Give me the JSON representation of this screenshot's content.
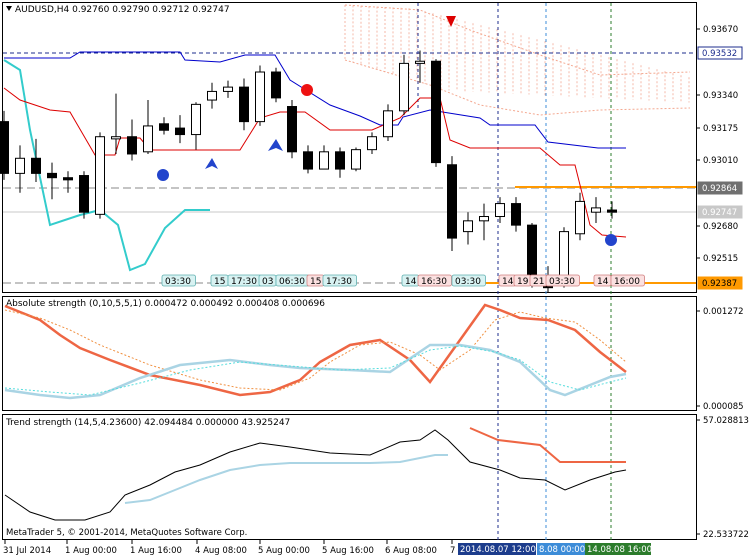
{
  "main_header": "AUDUSD,H4  0.92760 0.92790 0.92712 0.92747",
  "abs_header": "Absolute strength (0,10,5,5,1) 0.000472 0.000492 0.000408 0.000696",
  "trend_header": "Trend strength (14,5,4.23600) 42.094484 0.000000 43.925247",
  "copyright": "MetaTrader 5, © 2001-2014, MetaQuotes Software Corp.",
  "colors": {
    "bull_candle": "#ffffff",
    "bear_candle": "#000000",
    "kijun": "#0000cc",
    "tenkan": "#dd0000",
    "chikou": "#33cccc",
    "abs_red": "#ee6644",
    "abs_blue": "#aad4e4",
    "orange_level": "#ff9900"
  },
  "price_axis": {
    "ticks": [
      "0.93670",
      "0.93340",
      "0.93175",
      "0.93010",
      "0.92680",
      "0.92515"
    ],
    "badges": [
      {
        "text": "0.93532",
        "style": "blue"
      },
      {
        "text": "0.92864",
        "style": "gray"
      },
      {
        "text": "0.92747",
        "style": "light"
      },
      {
        "text": "0.92387",
        "style": "orange"
      }
    ]
  },
  "abs_axis": {
    "top": "0.001272",
    "bottom": "0.000085"
  },
  "trend_axis": {
    "top": "57.028813",
    "bottom": "22.533722"
  },
  "time_axis": [
    "31 Jul 2014",
    "1 Aug 00:00",
    "1 Aug 16:00",
    "4 Aug 08:00",
    "5 Aug 00:00",
    "5 Aug 16:00",
    "6 Aug 08:00",
    "7"
  ],
  "time_badges": [
    {
      "text": "2014.08.07 12:00",
      "color": "#1c3c8c"
    },
    {
      "text": "8.08 00:00",
      "color": "#3c8cd8"
    },
    {
      "text": "14.08.08 16:00",
      "color": "#2c7c2c"
    }
  ],
  "time_tags": [
    {
      "text": "03:30",
      "kind": "blue"
    },
    {
      "text": "15",
      "kind": "blue"
    },
    {
      "text": "17:30",
      "kind": "blue"
    },
    {
      "text": "03",
      "kind": "blue"
    },
    {
      "text": "06:30",
      "kind": "blue"
    },
    {
      "text": "15",
      "kind": "red"
    },
    {
      "text": "17:30",
      "kind": "blue"
    },
    {
      "text": "14",
      "kind": "blue"
    },
    {
      "text": "16:30",
      "kind": "red"
    },
    {
      "text": "03:30",
      "kind": "blue"
    },
    {
      "text": "14",
      "kind": "red"
    },
    {
      "text": "19",
      "kind": "red"
    },
    {
      "text": "21",
      "kind": "red"
    },
    {
      "text": "03:30",
      "kind": "red"
    },
    {
      "text": "14",
      "kind": "red"
    },
    {
      "text": "16:00",
      "kind": "red"
    }
  ],
  "chart_data": {
    "type": "candlestick",
    "symbol": "AUDUSD",
    "timeframe": "H4",
    "ylim": [
      0.9238,
      0.9372
    ],
    "candles": [
      {
        "o": 0.9317,
        "h": 0.9322,
        "l": 0.929,
        "c": 0.9293
      },
      {
        "o": 0.9293,
        "h": 0.9306,
        "l": 0.9284,
        "c": 0.93
      },
      {
        "o": 0.93,
        "h": 0.9309,
        "l": 0.9289,
        "c": 0.9293
      },
      {
        "o": 0.9293,
        "h": 0.9298,
        "l": 0.9281,
        "c": 0.9291
      },
      {
        "o": 0.9291,
        "h": 0.9294,
        "l": 0.9284,
        "c": 0.929
      },
      {
        "o": 0.9292,
        "h": 0.9294,
        "l": 0.9272,
        "c": 0.9275
      },
      {
        "o": 0.9274,
        "h": 0.9312,
        "l": 0.9272,
        "c": 0.931
      },
      {
        "o": 0.9309,
        "h": 0.933,
        "l": 0.9302,
        "c": 0.931
      },
      {
        "o": 0.931,
        "h": 0.9318,
        "l": 0.9299,
        "c": 0.9302
      },
      {
        "o": 0.9303,
        "h": 0.9327,
        "l": 0.9302,
        "c": 0.9315
      },
      {
        "o": 0.9316,
        "h": 0.9319,
        "l": 0.9311,
        "c": 0.9313
      },
      {
        "o": 0.9314,
        "h": 0.932,
        "l": 0.9307,
        "c": 0.9311
      },
      {
        "o": 0.9311,
        "h": 0.9326,
        "l": 0.9304,
        "c": 0.9325
      },
      {
        "o": 0.9327,
        "h": 0.9335,
        "l": 0.9323,
        "c": 0.9331
      },
      {
        "o": 0.9331,
        "h": 0.9336,
        "l": 0.9328,
        "c": 0.9333
      },
      {
        "o": 0.9333,
        "h": 0.9337,
        "l": 0.9313,
        "c": 0.9317
      },
      {
        "o": 0.9317,
        "h": 0.9343,
        "l": 0.9315,
        "c": 0.934
      },
      {
        "o": 0.934,
        "h": 0.9342,
        "l": 0.9326,
        "c": 0.9328
      },
      {
        "o": 0.9324,
        "h": 0.9327,
        "l": 0.93,
        "c": 0.9303
      },
      {
        "o": 0.9303,
        "h": 0.9306,
        "l": 0.9293,
        "c": 0.9295
      },
      {
        "o": 0.9295,
        "h": 0.9306,
        "l": 0.9295,
        "c": 0.9303
      },
      {
        "o": 0.9303,
        "h": 0.9305,
        "l": 0.9291,
        "c": 0.9295
      },
      {
        "o": 0.9295,
        "h": 0.9305,
        "l": 0.9294,
        "c": 0.9304
      },
      {
        "o": 0.9304,
        "h": 0.9312,
        "l": 0.9302,
        "c": 0.931
      },
      {
        "o": 0.931,
        "h": 0.9325,
        "l": 0.9308,
        "c": 0.9322
      },
      {
        "o": 0.9322,
        "h": 0.9348,
        "l": 0.932,
        "c": 0.9344
      },
      {
        "o": 0.9344,
        "h": 0.935,
        "l": 0.9335,
        "c": 0.9345
      },
      {
        "o": 0.9345,
        "h": 0.9346,
        "l": 0.9296,
        "c": 0.9298
      },
      {
        "o": 0.9297,
        "h": 0.9301,
        "l": 0.9257,
        "c": 0.9263
      },
      {
        "o": 0.9266,
        "h": 0.9275,
        "l": 0.926,
        "c": 0.9271
      },
      {
        "o": 0.9271,
        "h": 0.9279,
        "l": 0.9262,
        "c": 0.9273
      },
      {
        "o": 0.9273,
        "h": 0.9282,
        "l": 0.927,
        "c": 0.9279
      },
      {
        "o": 0.9279,
        "h": 0.9282,
        "l": 0.9266,
        "c": 0.9269
      },
      {
        "o": 0.9269,
        "h": 0.927,
        "l": 0.924,
        "c": 0.9245
      },
      {
        "o": 0.9245,
        "h": 0.925,
        "l": 0.9238,
        "c": 0.924
      },
      {
        "o": 0.9242,
        "h": 0.9268,
        "l": 0.924,
        "c": 0.9266
      },
      {
        "o": 0.9265,
        "h": 0.9284,
        "l": 0.9262,
        "c": 0.928
      },
      {
        "o": 0.9275,
        "h": 0.9282,
        "l": 0.927,
        "c": 0.9277
      },
      {
        "o": 0.9276,
        "h": 0.928,
        "l": 0.9272,
        "c": 0.9275
      }
    ],
    "horizontal_levels": [
      0.93532,
      0.92864,
      0.92747,
      0.92387
    ]
  }
}
